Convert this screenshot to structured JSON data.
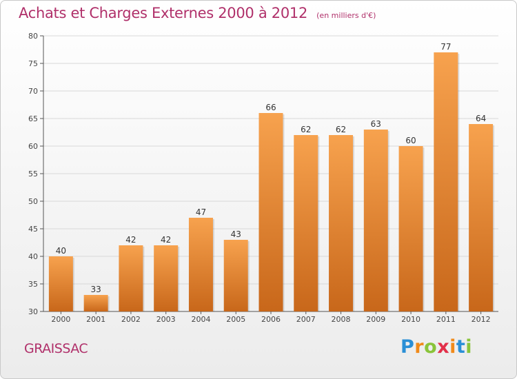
{
  "title": "Achats et Charges Externes 2000 à 2012",
  "unit_note": "(en milliers d'€)",
  "commune": "GRAISSAC",
  "brand": "Proxiti",
  "colors": {
    "title": "#b0306a",
    "bar_light": "#f7a24e",
    "bar_dark": "#c8671a",
    "axis": "#555555",
    "grid": "#d8d8d8"
  },
  "chart_data": {
    "type": "bar",
    "title": "Achats et Charges Externes 2000 à 2012",
    "xlabel": "",
    "ylabel": "",
    "categories": [
      "2000",
      "2001",
      "2002",
      "2003",
      "2004",
      "2005",
      "2006",
      "2007",
      "2008",
      "2009",
      "2010",
      "2011",
      "2012"
    ],
    "values": [
      40,
      33,
      42,
      42,
      47,
      43,
      66,
      62,
      62,
      63,
      60,
      77,
      64
    ],
    "ylim": [
      30,
      80
    ],
    "yticks": [
      30,
      35,
      40,
      45,
      50,
      55,
      60,
      65,
      70,
      75,
      80
    ],
    "grid": true,
    "data_labels": true
  }
}
